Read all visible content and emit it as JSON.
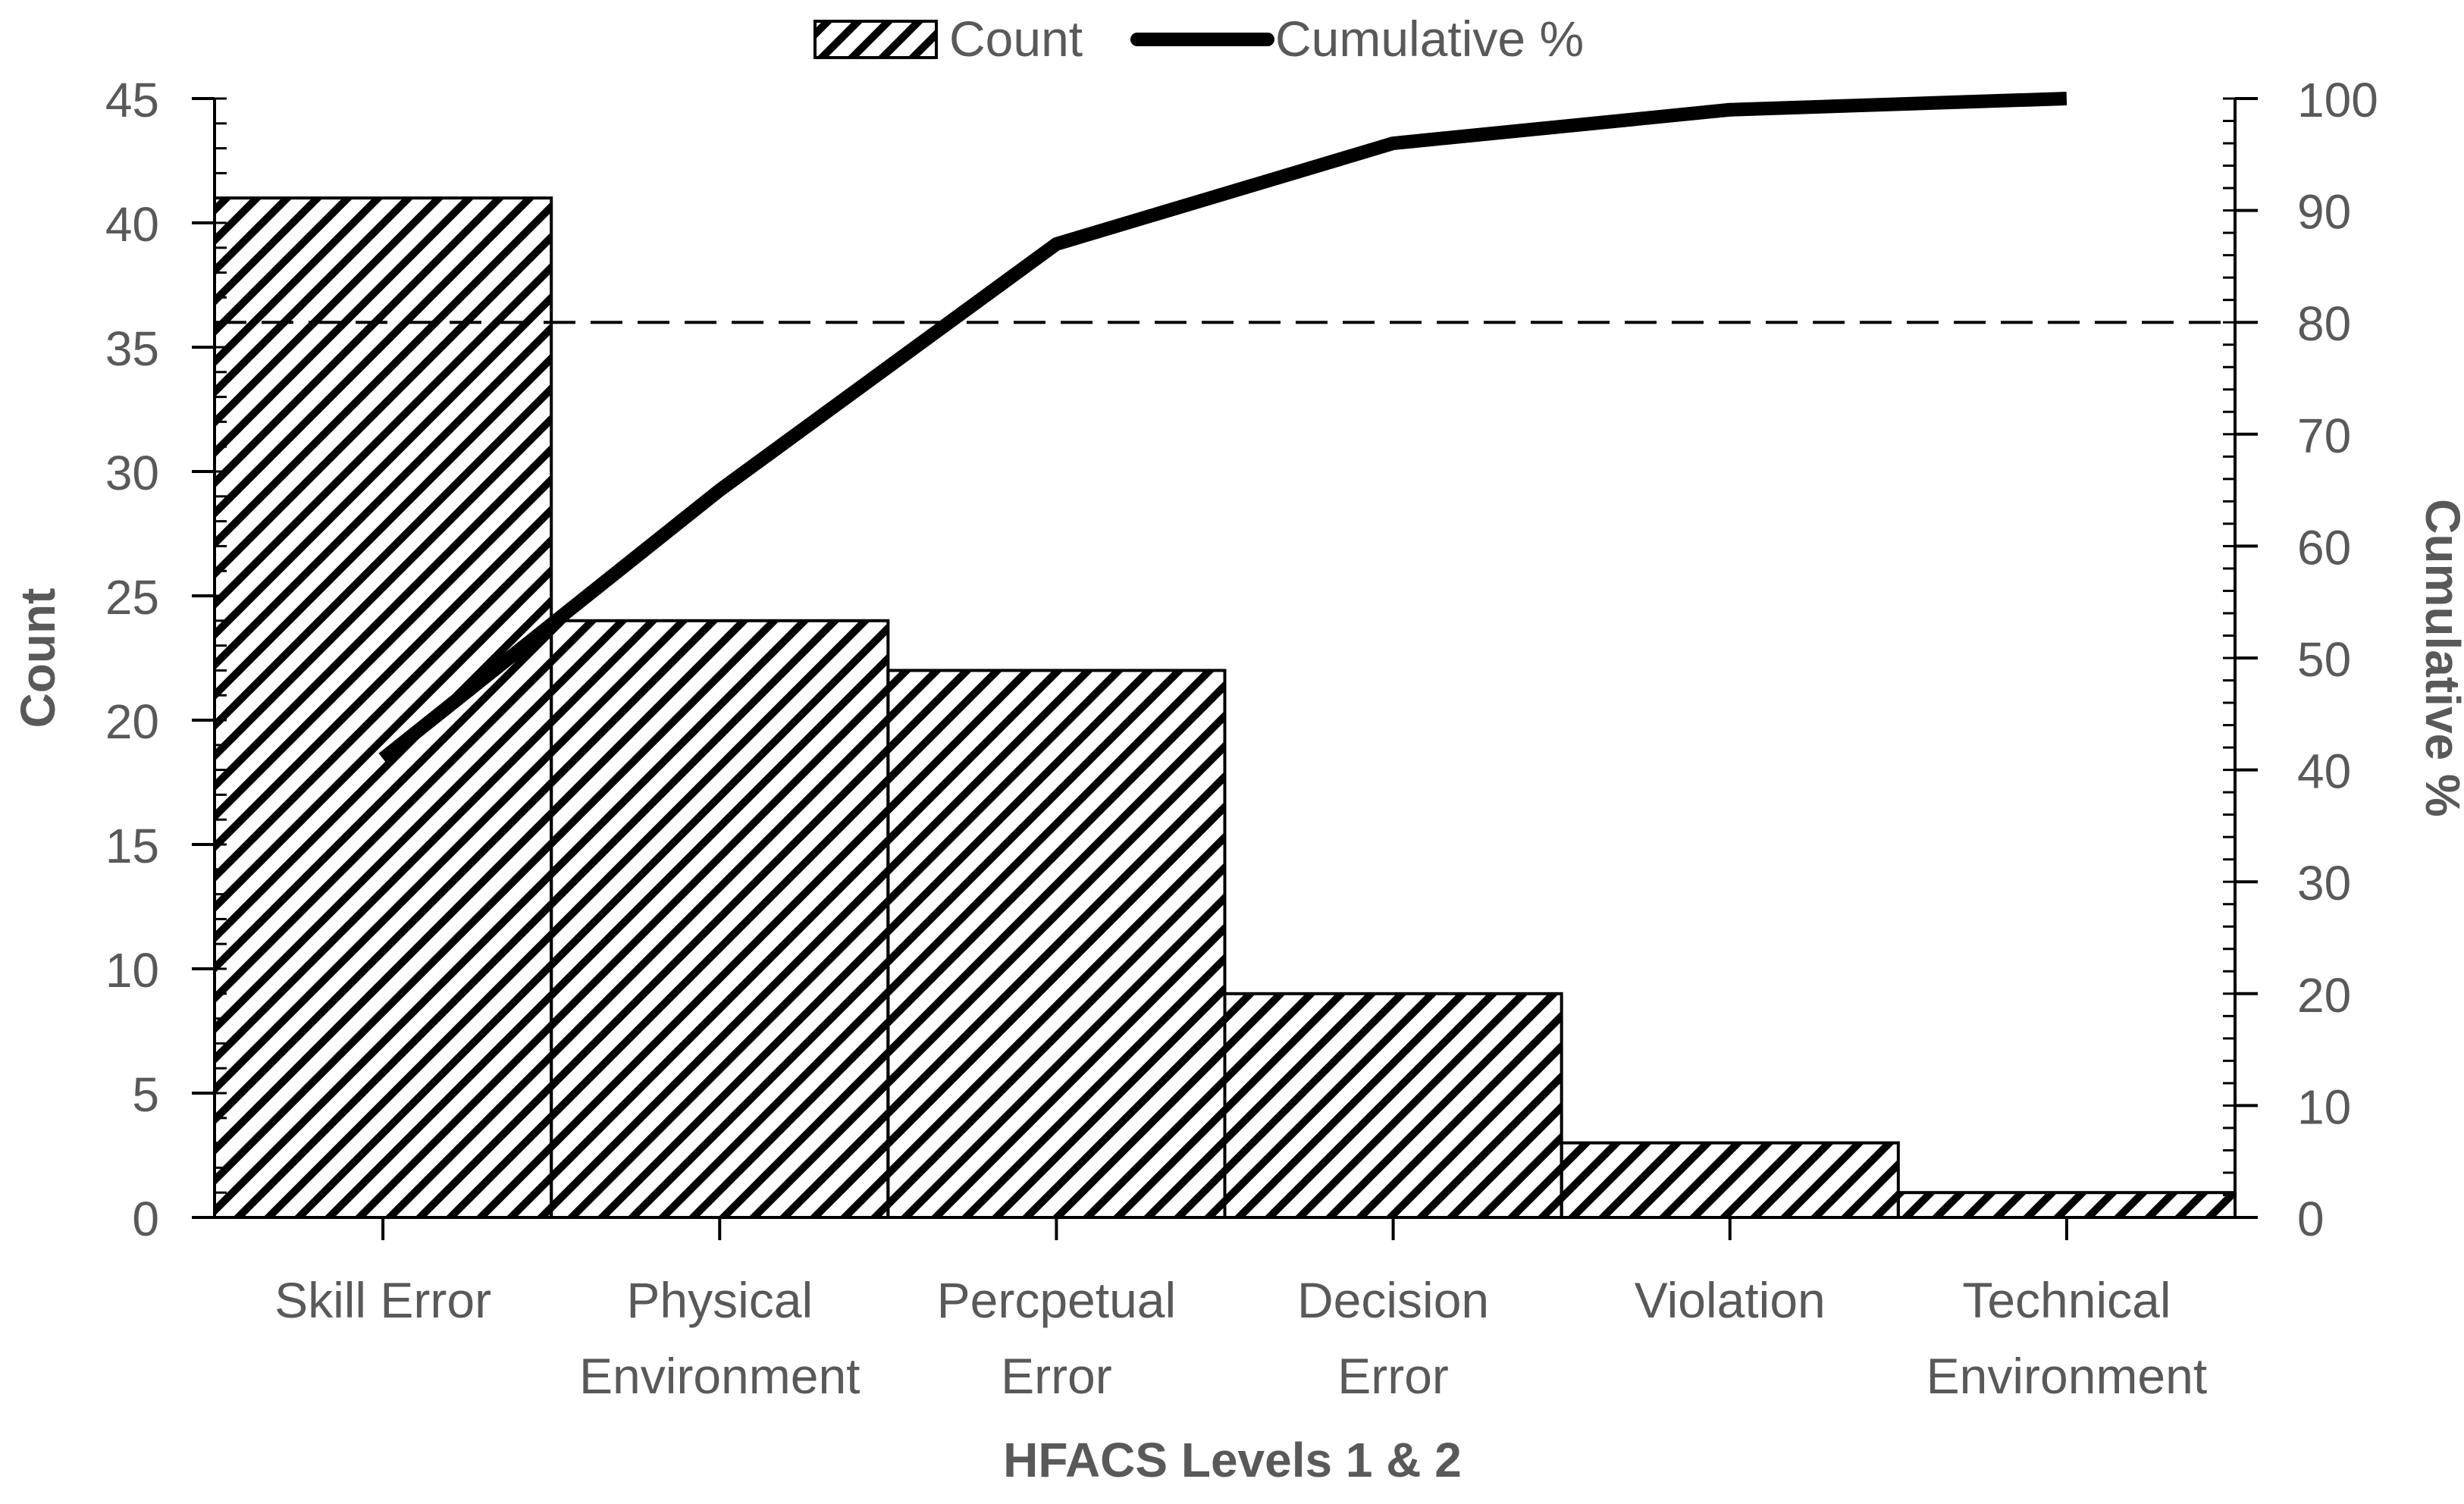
{
  "chart_data": {
    "type": "bar",
    "title": "",
    "xlabel": "HFACS Levels 1 & 2",
    "ylabel": "Count",
    "y2label": "Cumulative %",
    "categories": [
      [
        "Skill Error"
      ],
      [
        "Physical",
        "Environment"
      ],
      [
        "Percpetual",
        "Error"
      ],
      [
        "Decision",
        "Error"
      ],
      [
        "Violation"
      ],
      [
        "Technical",
        "Environment"
      ]
    ],
    "series": [
      {
        "name": "Count",
        "type": "bar",
        "axis": "left",
        "pattern": "diagonal-hatch",
        "values": [
          41,
          24,
          22,
          9,
          3,
          1
        ]
      },
      {
        "name": "Cumulative %",
        "type": "line",
        "axis": "right",
        "values": [
          41,
          65,
          87,
          96,
          99,
          100
        ]
      }
    ],
    "ylim": [
      0,
      45
    ],
    "y_ticks": [
      0,
      5,
      10,
      15,
      20,
      25,
      30,
      35,
      40,
      45
    ],
    "y2lim": [
      0,
      100
    ],
    "y2_ticks": [
      0,
      10,
      20,
      30,
      40,
      50,
      60,
      70,
      80,
      90,
      100
    ],
    "reference_line": {
      "axis": "right",
      "value": 80,
      "style": "dashed"
    },
    "legend": {
      "position": "top-center",
      "entries": [
        "Count",
        "Cumulative %"
      ]
    },
    "grid": false,
    "colors": {
      "bars": "#000000",
      "line": "#000000",
      "text": "#595959",
      "background": "#ffffff"
    }
  }
}
